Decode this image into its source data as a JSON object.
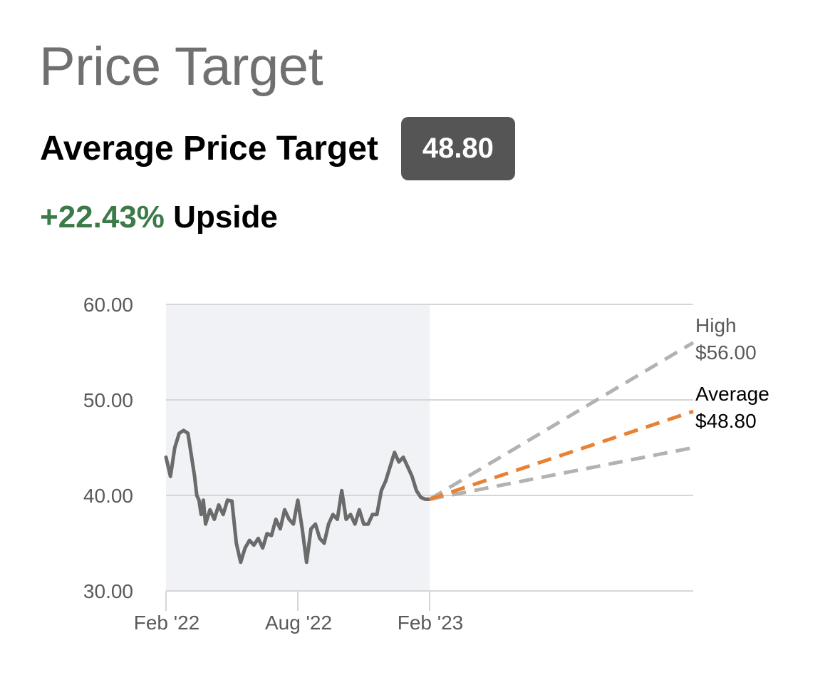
{
  "header": {
    "title": "Price Target",
    "average_label": "Average Price Target",
    "average_value": "48.80",
    "upside_pct": "+22.43%",
    "upside_word": "Upside"
  },
  "colors": {
    "history_band": "#f1f2f6",
    "price_line": "#6b6b6b",
    "target_gray": "#b2b2b2",
    "target_average": "#e98132",
    "upside_green": "#3c7a4a"
  },
  "chart_data": {
    "type": "line",
    "title": "",
    "xlabel": "",
    "ylabel": "",
    "ylim": [
      30,
      60
    ],
    "y_ticks": [
      "60.00",
      "50.00",
      "40.00",
      "30.00"
    ],
    "x_ticks": [
      "Feb '22",
      "Aug '22",
      "Feb '23"
    ],
    "xlim_months": [
      0,
      24
    ],
    "grid": "horizontal",
    "series": [
      {
        "x": [
          0,
          0.2,
          0.4,
          0.6,
          0.8,
          1.0,
          1.2,
          1.3,
          1.4,
          1.5,
          1.6,
          1.7,
          1.8,
          2.0,
          2.2,
          2.4,
          2.6,
          2.8,
          3.0,
          3.2,
          3.4,
          3.6,
          3.8,
          4.0,
          4.2,
          4.4,
          4.6,
          4.8,
          5.0,
          5.2,
          5.4,
          5.6,
          5.8,
          6.0,
          6.2,
          6.4,
          6.6,
          6.8,
          7.0,
          7.2,
          7.4,
          7.6,
          7.8,
          8.0,
          8.2,
          8.4,
          8.6,
          8.8,
          9.0,
          9.2,
          9.4,
          9.6,
          9.8,
          10.0,
          10.2,
          10.4,
          10.6,
          10.8,
          11.0,
          11.2,
          11.4,
          11.6,
          11.8,
          12.0
        ],
        "values": [
          44.0,
          42.0,
          45.0,
          46.5,
          46.8,
          46.5,
          43.5,
          42.0,
          40.0,
          39.5,
          38.0,
          39.5,
          37.0,
          38.5,
          37.5,
          39.0,
          38.0,
          39.5,
          39.4,
          35.0,
          33.0,
          34.5,
          35.3,
          34.8,
          35.5,
          34.5,
          36.0,
          35.8,
          37.5,
          36.5,
          38.5,
          37.5,
          37.0,
          39.5,
          36.5,
          33.0,
          36.5,
          37.0,
          35.5,
          35.0,
          37.0,
          38.0,
          37.5,
          40.5,
          37.5,
          38.0,
          37.0,
          38.5,
          37.0,
          37.0,
          38.0,
          38.0,
          40.5,
          41.5,
          43.0,
          44.5,
          43.5,
          44.0,
          43.0,
          42.0,
          40.5,
          39.8,
          39.6,
          39.6
        ]
      }
    ],
    "targets": {
      "start_price": 39.6,
      "high": {
        "label": "High",
        "value_label": "$56.00",
        "value": 56.0
      },
      "average": {
        "label": "Average",
        "value_label": "$48.80",
        "value": 48.8
      },
      "low": {
        "value": 45.0
      }
    }
  }
}
